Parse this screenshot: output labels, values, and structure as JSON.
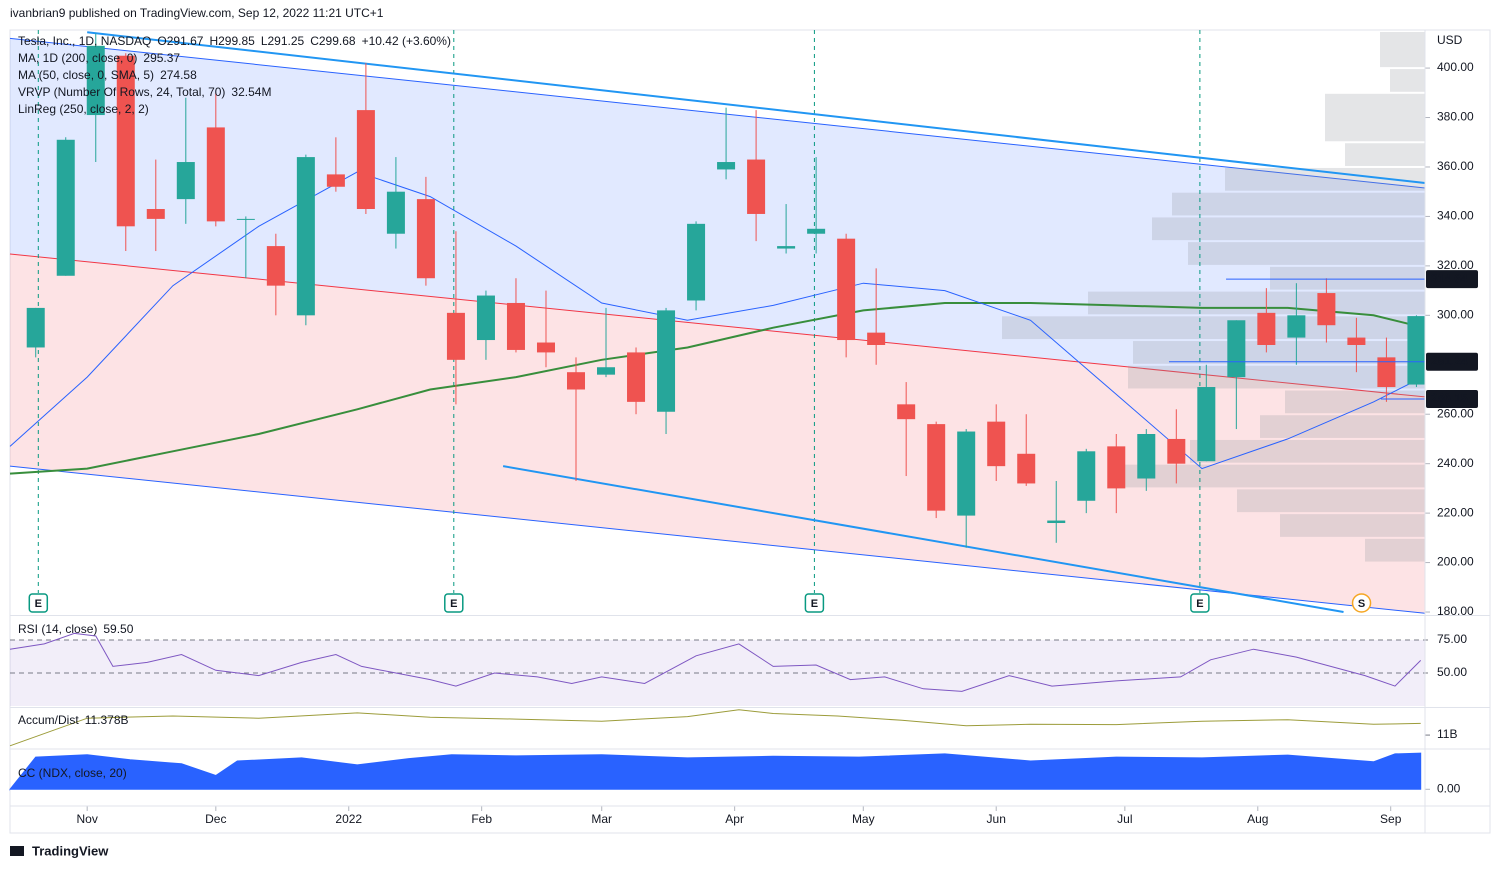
{
  "header": {
    "author_line": "ivanbrian9 published on TradingView.com, Sep 12, 2022 11:21 UTC+1"
  },
  "footer": {
    "brand": "TradingView"
  },
  "chart_data": [
    {
      "type": "candlestick",
      "symbol": "Tesla, Inc., 1D, NASDAQ",
      "quote": [
        "O291.67",
        "H299.85",
        "L291.25",
        "C299.68",
        "+10.42 (+3.60%)"
      ],
      "currency": "USD",
      "up_color": "#26a69a",
      "down_color": "#ef5350",
      "x": [
        -12,
        -5,
        2,
        9,
        16,
        23,
        30,
        37,
        44,
        51,
        58,
        65,
        72,
        79,
        86,
        93,
        100,
        107,
        114,
        121,
        128,
        135,
        142,
        149,
        156,
        163,
        170,
        177,
        184,
        191,
        198,
        205,
        212,
        219,
        226,
        233,
        240,
        247,
        254,
        261,
        268,
        275,
        282,
        289,
        296,
        303,
        310
      ],
      "open": [
        287,
        316,
        381,
        405,
        343,
        347,
        376,
        339,
        328,
        300,
        357,
        383,
        333,
        347,
        301,
        290,
        305,
        289,
        277,
        276,
        285,
        261,
        306,
        359,
        363,
        327,
        333,
        331,
        293,
        264,
        256,
        219,
        257,
        244,
        216,
        225,
        247,
        234,
        250,
        241,
        275,
        301,
        291,
        309,
        291,
        283,
        272
      ],
      "high": [
        303,
        372,
        414,
        406,
        363,
        388,
        390,
        340,
        333,
        365,
        372,
        402,
        364,
        356,
        334,
        310,
        315,
        310,
        283,
        303,
        287,
        303,
        338,
        384,
        383,
        345,
        364,
        333,
        319,
        273,
        257,
        254,
        264,
        260,
        233,
        246,
        252,
        254,
        262,
        280,
        298,
        311,
        313,
        315,
        299,
        291,
        300
      ],
      "low": [
        283,
        316,
        362,
        326,
        326,
        337,
        336,
        315,
        300,
        296,
        350,
        341,
        327,
        312,
        264,
        282,
        285,
        279,
        233,
        275,
        260,
        252,
        302,
        355,
        330,
        325,
        325,
        283,
        280,
        235,
        218,
        206,
        233,
        231,
        208,
        220,
        220,
        229,
        232,
        241,
        254,
        285,
        280,
        289,
        277,
        265,
        271
      ],
      "close": [
        303,
        371,
        409,
        336,
        339,
        362,
        338,
        339,
        312,
        364,
        352,
        343,
        350,
        315,
        282,
        308,
        286,
        285,
        270,
        279,
        265,
        302,
        337,
        362,
        341,
        328,
        335,
        290,
        288,
        258,
        221,
        253,
        239,
        232,
        217,
        245,
        230,
        252,
        240,
        271,
        298,
        288,
        300,
        296,
        288,
        271,
        299.68
      ],
      "series": [
        {
          "name": "MA, 1D (200, close, 0)",
          "color": "#388e3c",
          "x": [
            -18,
            0,
            20,
            40,
            63,
            80,
            100,
            120,
            140,
            160,
            181,
            200,
            220,
            240,
            260,
            280,
            300,
            311
          ],
          "values": [
            236,
            238,
            245,
            252,
            262,
            270,
            275,
            282,
            287,
            295,
            302,
            305,
            305,
            304,
            303,
            303,
            300,
            295.37
          ]
        },
        {
          "name": "MA (50, close, 0, SMA, 5)",
          "color": "#2962ff",
          "x": [
            -18,
            0,
            20,
            40,
            63,
            80,
            100,
            120,
            140,
            160,
            181,
            200,
            220,
            240,
            260,
            280,
            300,
            311
          ],
          "values": [
            247,
            275,
            312,
            336,
            358,
            348,
            328,
            305,
            298,
            304,
            313,
            310,
            298,
            268,
            238,
            250,
            265,
            274.58
          ]
        }
      ],
      "indicators": [
        {
          "name": "VRVP (Number Of Rows, 24, Total, 70)",
          "value_label": "32.54M"
        },
        {
          "name": "LinReg (250, close, 2, 2)"
        }
      ],
      "vrvp": [
        {
          "low": 400,
          "high": 415,
          "volume": 45
        },
        {
          "low": 390,
          "high": 400,
          "volume": 35
        },
        {
          "low": 370,
          "high": 390,
          "volume": 100
        },
        {
          "low": 360,
          "high": 370,
          "volume": 80
        },
        {
          "low": 350,
          "high": 360,
          "volume": 200
        },
        {
          "low": 340,
          "high": 350,
          "volume": 253
        },
        {
          "low": 330,
          "high": 340,
          "volume": 273
        },
        {
          "low": 320,
          "high": 330,
          "volume": 237
        },
        {
          "low": 310,
          "high": 320,
          "volume": 155
        },
        {
          "low": 300,
          "high": 310,
          "volume": 337
        },
        {
          "low": 290,
          "high": 300,
          "volume": 423
        },
        {
          "low": 280,
          "high": 290,
          "volume": 292
        },
        {
          "low": 270,
          "high": 280,
          "volume": 297
        },
        {
          "low": 260,
          "high": 270,
          "volume": 140
        },
        {
          "low": 250,
          "high": 260,
          "volume": 165
        },
        {
          "low": 240,
          "high": 250,
          "volume": 235
        },
        {
          "low": 230,
          "high": 240,
          "volume": 315
        },
        {
          "low": 220,
          "high": 230,
          "volume": 188
        },
        {
          "low": 210,
          "high": 220,
          "volume": 145
        },
        {
          "low": 200,
          "high": 210,
          "volume": 60
        }
      ],
      "linreg": {
        "x": [
          -18,
          312
        ],
        "upper": [
          412,
          351.5
        ],
        "mid": [
          324.8,
          267
        ],
        "lower": [
          239,
          179.5
        ]
      },
      "trendlines": [
        {
          "x": [
            0,
            312
          ],
          "y": [
            414.5,
            353.5
          ],
          "color": "#2196f3"
        },
        {
          "x": [
            97,
            293
          ],
          "y": [
            239,
            180
          ],
          "color": "#2196f3"
        }
      ],
      "levels": [
        {
          "value": 314.64,
          "start": 265.6
        },
        {
          "value": 281.24,
          "start": 252.3
        },
        {
          "value": 266.15,
          "start": 301.7
        }
      ],
      "events": [
        {
          "label": "E",
          "x": -11.4,
          "color": "#089981"
        },
        {
          "label": "E",
          "x": 85.5,
          "color": "#089981"
        },
        {
          "label": "E",
          "x": 169.6,
          "color": "#089981"
        },
        {
          "label": "E",
          "x": 259.5,
          "color": "#089981"
        },
        {
          "label": "S",
          "x": 297.2,
          "color": "#f5a623"
        }
      ],
      "xlim": [
        -18,
        312
      ],
      "ylim": [
        179.2,
        415.4
      ],
      "yticks": [
        {
          "value": 180,
          "label": "180.00"
        },
        {
          "value": 200,
          "label": "200.00"
        },
        {
          "value": 220,
          "label": "220.00"
        },
        {
          "value": 240,
          "label": "240.00"
        },
        {
          "value": 260,
          "label": "260.00"
        },
        {
          "value": 300,
          "label": "300.00"
        },
        {
          "value": 320,
          "label": "320.00"
        },
        {
          "value": 340,
          "label": "340.00"
        },
        {
          "value": 360,
          "label": "360.00"
        },
        {
          "value": 380,
          "label": "380.00"
        },
        {
          "value": 400,
          "label": "400.00"
        }
      ],
      "xticks": [
        {
          "value": 0,
          "label": "Nov"
        },
        {
          "value": 30,
          "label": "Dec"
        },
        {
          "value": 61,
          "label": "2022"
        },
        {
          "value": 92,
          "label": "Feb"
        },
        {
          "value": 120,
          "label": "Mar"
        },
        {
          "value": 151,
          "label": "Apr"
        },
        {
          "value": 181,
          "label": "May"
        },
        {
          "value": 212,
          "label": "Jun"
        },
        {
          "value": 242,
          "label": "Jul"
        },
        {
          "value": 273,
          "label": "Aug"
        },
        {
          "value": 304,
          "label": "Sep"
        }
      ]
    },
    {
      "type": "line",
      "name": "RSI (14, close)",
      "legend_value": "59.50",
      "color": "#7e57c2",
      "x": [
        -18,
        -10,
        -3,
        2,
        6,
        14,
        22,
        30,
        40,
        50,
        58,
        64,
        72,
        80,
        86,
        95,
        105,
        113,
        120,
        130,
        142,
        152,
        160,
        170,
        178,
        186,
        195,
        204,
        215,
        225,
        240,
        255,
        262,
        272,
        282,
        290,
        298,
        305,
        311
      ],
      "values": [
        68,
        72,
        80,
        78,
        55,
        58,
        64,
        52,
        48,
        58,
        64,
        55,
        50,
        45,
        40,
        50,
        47,
        42,
        47,
        42,
        63,
        72,
        55,
        56,
        45,
        47,
        38,
        36,
        48,
        40,
        44,
        47,
        60,
        68,
        62,
        55,
        48,
        40,
        59.5
      ],
      "xlim": [
        -18,
        312
      ],
      "ylim": [
        24.2,
        92.4
      ],
      "yticks": [
        {
          "value": 50,
          "label": "50.00"
        },
        {
          "value": 75,
          "label": "75.00"
        }
      ]
    },
    {
      "type": "line",
      "name": "Accum/Dist",
      "legend_value": "11.378B",
      "color": "#9c9c3a",
      "x": [
        -18,
        0,
        20,
        40,
        63,
        80,
        100,
        120,
        140,
        152,
        160,
        175,
        190,
        205,
        220,
        240,
        260,
        280,
        300,
        311
      ],
      "values": [
        10650000000,
        11550000000,
        11620000000,
        11550000000,
        11720000000,
        11580000000,
        11520000000,
        11450000000,
        11600000000,
        11820000000,
        11700000000,
        11620000000,
        11480000000,
        11300000000,
        11350000000,
        11340000000,
        11450000000,
        11500000000,
        11350000000,
        11378000000
      ],
      "xlim": [
        -18,
        312
      ],
      "ylim": [
        10580000000,
        11880000000
      ],
      "yticks": [
        {
          "value": 11000000000,
          "label": "11B"
        }
      ]
    },
    {
      "type": "area",
      "name": "CC (NDX, close, 20)",
      "color": "#2962ff",
      "x": [
        -18,
        -12,
        0,
        10,
        22,
        30,
        35,
        50,
        63,
        75,
        85,
        100,
        120,
        140,
        160,
        180,
        200,
        220,
        240,
        260,
        280,
        300,
        305,
        311
      ],
      "values": [
        0,
        0.82,
        0.88,
        0.75,
        0.65,
        0.35,
        0.72,
        0.8,
        0.62,
        0.78,
        0.88,
        0.85,
        0.88,
        0.8,
        0.84,
        0.82,
        0.9,
        0.72,
        0.82,
        0.8,
        0.87,
        0.7,
        0.9,
        0.92
      ],
      "xlim": [
        -18,
        312
      ],
      "ylim": [
        -0.4,
        1
      ],
      "yticks": [
        {
          "value": 0,
          "label": "0.00"
        }
      ]
    }
  ]
}
